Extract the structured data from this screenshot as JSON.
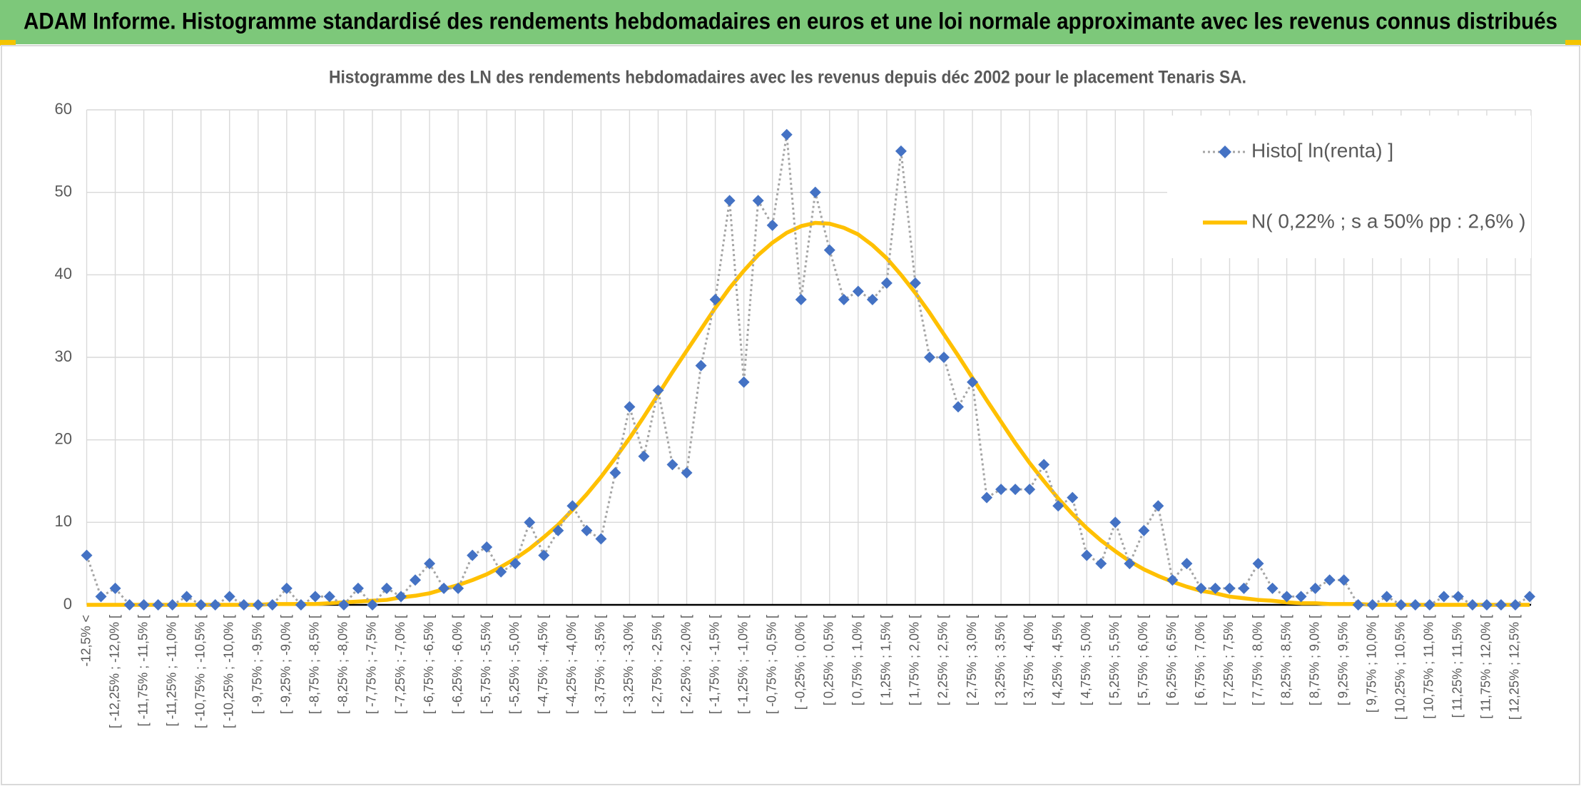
{
  "header": {
    "title": "ADAM Informe. Histogramme standardisé des rendements hebdomadaires en euros et une loi normale approximante avec les revenus connus distribués"
  },
  "chart_data": {
    "type": "line",
    "title": "Histogramme des LN des rendements hebdomadaires avec les revenus depuis déc 2002 pour le placement Tenaris SA.",
    "categories": [
      "-12,5% <",
      null,
      "[ -12,25% ; -12,0% [",
      null,
      "[ -11,75% ; -11,5% [",
      null,
      "[ -11,25% ; -11,0% [",
      null,
      "[ -10,75% ; -10,5% [",
      null,
      "[ -10,25% ; -10,0% [",
      null,
      "[ -9,75% ; -9,5% [",
      null,
      "[ -9,25% ; -9,0% [",
      null,
      "[ -8,75% ; -8,5% [",
      null,
      "[ -8,25% ; -8,0% [",
      null,
      "[ -7,75% ; -7,5% [",
      null,
      "[ -7,25% ; -7,0% [",
      null,
      "[ -6,75% ; -6,5% [",
      null,
      "[ -6,25% ; -6,0% [",
      null,
      "[ -5,75% ; -5,5% [",
      null,
      "[ -5,25% ; -5,0% [",
      null,
      "[ -4,75% ; -4,5% [",
      null,
      "[ -4,25% ; -4,0% [",
      null,
      "[ -3,75% ; -3,5% [",
      null,
      "[ -3,25% ; -3,0% [",
      null,
      "[ -2,75% ; -2,5% [",
      null,
      "[ -2,25% ; -2,0% [",
      null,
      "[ -1,75% ; -1,5% [",
      null,
      "[ -1,25% ; -1,0% [",
      null,
      "[ -0,75% ; -0,5% [",
      null,
      "[ -0,25% ; 0,0% [",
      null,
      "[ 0,25% ; 0,5% [",
      null,
      "[ 0,75% ; 1,0% [",
      null,
      "[ 1,25% ; 1,5% [",
      null,
      "[ 1,75% ; 2,0% [",
      null,
      "[ 2,25% ; 2,5% [",
      null,
      "[ 2,75% ; 3,0% [",
      null,
      "[ 3,25% ; 3,5% [",
      null,
      "[ 3,75% ; 4,0% [",
      null,
      "[ 4,25% ; 4,5% [",
      null,
      "[ 4,75% ; 5,0% [",
      null,
      "[ 5,25% ; 5,5% [",
      null,
      "[ 5,75% ; 6,0% [",
      null,
      "[ 6,25% ; 6,5% [",
      null,
      "[ 6,75% ; 7,0% [",
      null,
      "[ 7,25% ; 7,5% [",
      null,
      "[ 7,75% ; 8,0% [",
      null,
      "[ 8,25% ; 8,5% [",
      null,
      "[ 8,75% ; 9,0% [",
      null,
      "[ 9,25% ; 9,5% [",
      null,
      "[ 9,75% ; 10,0% [",
      null,
      "[ 10,25% ; 10,5% [",
      null,
      "[ 10,75% ; 11,0% [",
      null,
      "[ 11,25% ; 11,5% [",
      null,
      "[ 11,75% ; 12,0% [",
      null,
      "[ 12,25% ; 12,5% [",
      null
    ],
    "series": [
      {
        "name": "Histo[ ln(renta) ]",
        "color": "#4472c4",
        "marker": "diamond",
        "line_color": "#a5a5a5",
        "line_style": "dotted",
        "values": [
          6,
          1,
          2,
          0,
          0,
          0,
          0,
          1,
          0,
          0,
          1,
          0,
          0,
          0,
          2,
          0,
          1,
          1,
          0,
          2,
          0,
          2,
          1,
          3,
          5,
          2,
          2,
          6,
          7,
          4,
          5,
          10,
          6,
          9,
          12,
          9,
          8,
          16,
          24,
          18,
          26,
          17,
          16,
          29,
          37,
          49,
          27,
          49,
          46,
          57,
          37,
          50,
          43,
          37,
          38,
          37,
          39,
          55,
          39,
          30,
          30,
          24,
          27,
          13,
          14,
          14,
          14,
          17,
          12,
          13,
          6,
          5,
          10,
          5,
          9,
          12,
          3,
          5,
          2,
          2,
          2,
          2,
          5,
          2,
          1,
          1,
          2,
          3,
          3,
          0,
          0,
          1,
          0,
          0,
          0,
          1,
          1,
          0,
          0,
          0,
          0,
          1
        ]
      },
      {
        "name": "N( 0,22% ; s a 50% pp : 2,6% )",
        "color": "#ffc000",
        "line_style": "solid",
        "values": [
          0,
          0,
          0,
          0,
          0,
          0,
          0,
          0,
          0,
          0,
          0,
          0,
          0,
          0.1,
          0.1,
          0.1,
          0.1,
          0.2,
          0.3,
          0.4,
          0.5,
          0.6,
          0.9,
          1.1,
          1.4,
          1.9,
          2.4,
          3.0,
          3.7,
          4.6,
          5.6,
          6.8,
          8.2,
          9.7,
          11.5,
          13.4,
          15.5,
          17.8,
          20.2,
          22.8,
          25.5,
          28.2,
          30.8,
          33.4,
          36.0,
          38.4,
          40.5,
          42.4,
          43.9,
          45.1,
          45.9,
          46.3,
          46.2,
          45.7,
          44.9,
          43.6,
          42.0,
          40.0,
          37.8,
          35.4,
          32.8,
          30.2,
          27.5,
          24.8,
          22.2,
          19.6,
          17.2,
          15.0,
          12.9,
          11.0,
          9.3,
          7.8,
          6.5,
          5.3,
          4.3,
          3.5,
          2.8,
          2.2,
          1.7,
          1.4,
          1.0,
          0.8,
          0.6,
          0.5,
          0.3,
          0.2,
          0.2,
          0.1,
          0.1,
          0.1,
          0,
          0,
          0,
          0,
          0,
          0,
          0,
          0,
          0,
          0,
          0,
          0
        ]
      }
    ],
    "ylim": [
      0,
      60
    ],
    "yticks": [
      0,
      10,
      20,
      30,
      40,
      50,
      60
    ],
    "grid": true,
    "legend": "upper right"
  }
}
